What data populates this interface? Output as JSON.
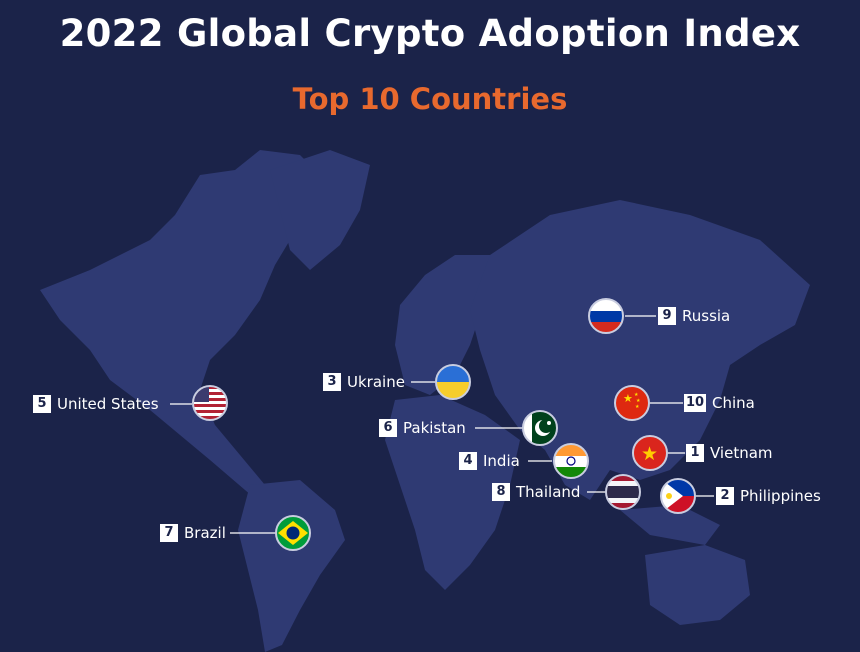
{
  "header": {
    "title": "2022 Global Crypto Adoption Index",
    "subtitle": "Top 10 Countries"
  },
  "colors": {
    "background": "#1b2349",
    "land": "#2f3a73",
    "accent": "#e8692e",
    "text": "#ffffff"
  },
  "countries": [
    {
      "rank": "1",
      "name": "Vietnam",
      "flag": "vietnam-flag-icon"
    },
    {
      "rank": "2",
      "name": "Philippines",
      "flag": "philippines-flag-icon"
    },
    {
      "rank": "3",
      "name": "Ukraine",
      "flag": "ukraine-flag-icon"
    },
    {
      "rank": "4",
      "name": "India",
      "flag": "india-flag-icon"
    },
    {
      "rank": "5",
      "name": "United States",
      "flag": "usa-flag-icon"
    },
    {
      "rank": "6",
      "name": "Pakistan",
      "flag": "pakistan-flag-icon"
    },
    {
      "rank": "7",
      "name": "Brazil",
      "flag": "brazil-flag-icon"
    },
    {
      "rank": "8",
      "name": "Thailand",
      "flag": "thailand-flag-icon"
    },
    {
      "rank": "9",
      "name": "Russia",
      "flag": "russia-flag-icon"
    },
    {
      "rank": "10",
      "name": "China",
      "flag": "china-flag-icon"
    }
  ]
}
